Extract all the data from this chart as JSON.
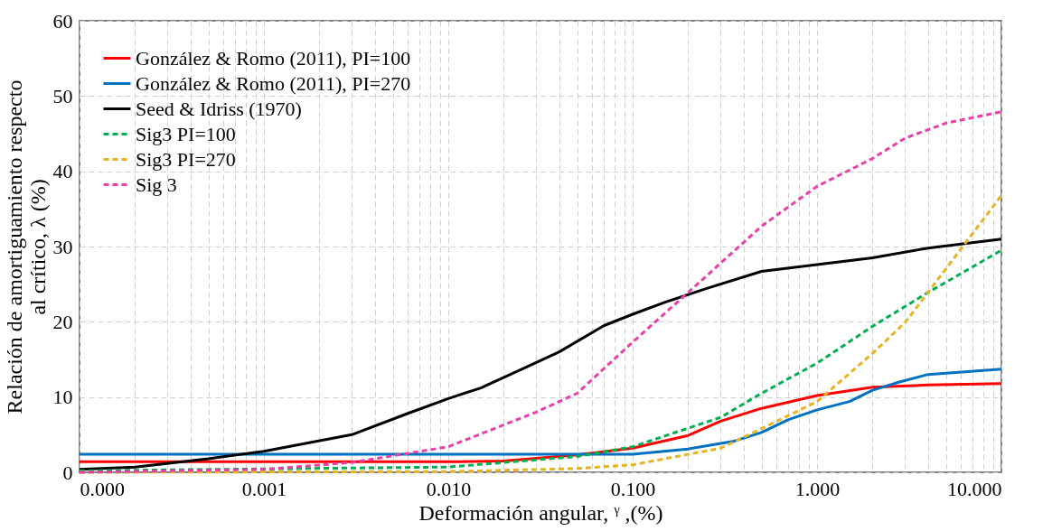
{
  "chart_data": {
    "type": "line",
    "xlabel": "Deformación angular, ᵞ ,(%)",
    "ylabel": "Relación de amortiguamiento respecto\nal crítico, λ (%)",
    "log": "x",
    "grid": true,
    "legend": "top left",
    "marker": "none",
    "xlim": [
      0.0001,
      10
    ],
    "ylim": [
      0,
      60
    ],
    "yticks": [
      0,
      10,
      20,
      30,
      40,
      50,
      60
    ],
    "xticks": [
      {
        "value": 0.0001,
        "label": "0.000"
      },
      {
        "value": 0.0002,
        "label": null
      },
      {
        "value": 0.0003,
        "label": null
      },
      {
        "value": 0.0004,
        "label": null
      },
      {
        "value": 0.0005,
        "label": null
      },
      {
        "value": 0.0006,
        "label": null
      },
      {
        "value": 0.0007,
        "label": null
      },
      {
        "value": 0.0008,
        "label": null
      },
      {
        "value": 0.0009,
        "label": null
      },
      {
        "value": 0.001,
        "label": "0.001"
      },
      {
        "value": 0.002,
        "label": null
      },
      {
        "value": 0.003,
        "label": null
      },
      {
        "value": 0.004,
        "label": null
      },
      {
        "value": 0.005,
        "label": null
      },
      {
        "value": 0.006,
        "label": null
      },
      {
        "value": 0.007,
        "label": null
      },
      {
        "value": 0.008,
        "label": null
      },
      {
        "value": 0.009,
        "label": null
      },
      {
        "value": 0.01,
        "label": "0.010"
      },
      {
        "value": 0.02,
        "label": null
      },
      {
        "value": 0.03,
        "label": null
      },
      {
        "value": 0.04,
        "label": null
      },
      {
        "value": 0.05,
        "label": null
      },
      {
        "value": 0.06,
        "label": null
      },
      {
        "value": 0.07,
        "label": null
      },
      {
        "value": 0.08,
        "label": null
      },
      {
        "value": 0.09,
        "label": null
      },
      {
        "value": 0.1,
        "label": "0.100"
      },
      {
        "value": 0.2,
        "label": null
      },
      {
        "value": 0.3,
        "label": null
      },
      {
        "value": 0.4,
        "label": null
      },
      {
        "value": 0.5,
        "label": null
      },
      {
        "value": 0.6,
        "label": null
      },
      {
        "value": 0.7,
        "label": null
      },
      {
        "value": 0.8,
        "label": null
      },
      {
        "value": 0.9,
        "label": null
      },
      {
        "value": 1,
        "label": "1.000"
      },
      {
        "value": 2,
        "label": null
      },
      {
        "value": 3,
        "label": null
      },
      {
        "value": 4,
        "label": null
      },
      {
        "value": 5,
        "label": null
      },
      {
        "value": 6,
        "label": null
      },
      {
        "value": 7,
        "label": null
      },
      {
        "value": 8,
        "label": null
      },
      {
        "value": 9,
        "label": null
      },
      {
        "value": 10,
        "label": "10.000"
      }
    ],
    "series": [
      {
        "name": "González & Romo (2011), PI=100",
        "color": "#ff0000",
        "line_style": "solid",
        "x": [
          0.0001,
          0.001,
          0.01,
          0.02,
          0.05,
          0.1,
          0.2,
          0.3,
          0.5,
          1,
          2,
          4,
          10
        ],
        "values": [
          1.4,
          1.4,
          1.4,
          1.5,
          2.3,
          3.2,
          4.9,
          6.8,
          8.5,
          10.2,
          11.3,
          11.6,
          11.8
        ]
      },
      {
        "name": "González & Romo (2011), PI=270",
        "color": "#0070c0",
        "line_style": "solid",
        "x": [
          0.0001,
          0.001,
          0.01,
          0.1,
          0.2,
          0.35,
          0.5,
          0.7,
          1,
          1.5,
          2,
          2.8,
          4,
          10
        ],
        "values": [
          2.4,
          2.4,
          2.4,
          2.4,
          3.1,
          4.1,
          5.3,
          7,
          8.3,
          9.4,
          10.9,
          12,
          13,
          13.7
        ]
      },
      {
        "name": "Seed & Idriss (1970)",
        "color": "#000000",
        "line_style": "solid",
        "x": [
          0.0001,
          0.0002,
          0.0005,
          0.001,
          0.003,
          0.006,
          0.01,
          0.015,
          0.025,
          0.04,
          0.07,
          0.1,
          0.15,
          0.25,
          0.5,
          1,
          2,
          4,
          10
        ],
        "values": [
          0.4,
          0.7,
          1.8,
          2.8,
          5,
          7.8,
          9.8,
          11.2,
          13.7,
          16,
          19.5,
          21,
          22.6,
          24.4,
          26.7,
          27.6,
          28.5,
          29.8,
          31
        ]
      },
      {
        "name": "Sig3 PI=100",
        "color": "#00b050",
        "line_style": "dashed",
        "x": [
          0.0001,
          0.01,
          0.05,
          0.1,
          0.3,
          0.5,
          1,
          2,
          4,
          10
        ],
        "values": [
          0.2,
          0.7,
          2.1,
          3.4,
          7.3,
          10.5,
          14.5,
          19.4,
          23.9,
          29.5
        ]
      },
      {
        "name": "Sig3 PI=270",
        "color": "#e6b422",
        "line_style": "dashed",
        "x": [
          0.0001,
          0.01,
          0.05,
          0.1,
          0.3,
          0.5,
          1,
          2,
          3,
          4,
          10
        ],
        "values": [
          0,
          0.1,
          0.5,
          1,
          3.2,
          5.8,
          9.4,
          15.8,
          19.9,
          23.9,
          36.8
        ]
      },
      {
        "name": "Sig 3",
        "color": "#e83fa8",
        "line_style": "dashed",
        "x": [
          0.0001,
          0.001,
          0.003,
          0.01,
          0.03,
          0.05,
          0.1,
          0.2,
          0.5,
          1,
          2,
          3,
          5,
          10
        ],
        "values": [
          0,
          0.4,
          1.3,
          3.4,
          8,
          10.5,
          17.3,
          23.9,
          32.7,
          38,
          41.7,
          44.4,
          46.4,
          47.9
        ]
      }
    ]
  }
}
